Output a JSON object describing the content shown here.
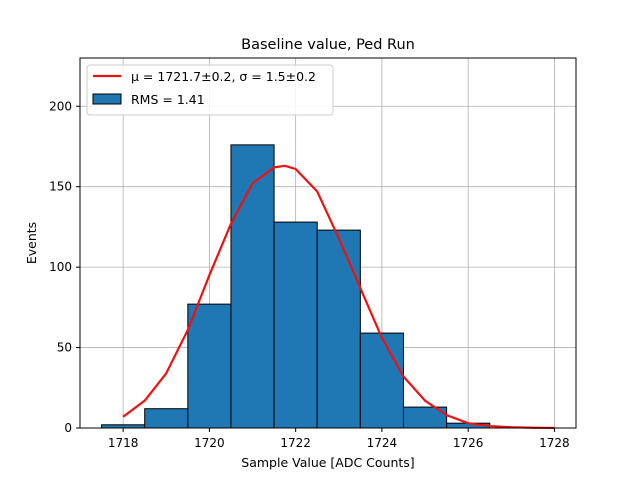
{
  "chart_data": {
    "type": "bar",
    "title": "Baseline value, Ped Run",
    "xlabel": "Sample Value [ADC Counts]",
    "ylabel": "Events",
    "xlim": [
      1717.0,
      1728.5
    ],
    "ylim": [
      0,
      230
    ],
    "xticks": [
      1718,
      1720,
      1722,
      1724,
      1726,
      1728
    ],
    "yticks": [
      0,
      50,
      100,
      150,
      200
    ],
    "grid": true,
    "legend_position": "top-left",
    "histogram": {
      "name": "RMS = 1.41",
      "color": "#1f77b4",
      "bin_edges": [
        1717.5,
        1718.5,
        1719.5,
        1720.5,
        1721.5,
        1722.5,
        1723.5,
        1724.5,
        1725.5,
        1726.5,
        1727.5
      ],
      "counts": [
        2,
        12,
        77,
        176,
        128,
        123,
        59,
        13,
        3,
        0
      ]
    },
    "fit": {
      "name": "μ = 1721.7±0.2, σ = 1.5±0.2",
      "color": "#ee1111",
      "x": [
        1718.0,
        1718.5,
        1719.0,
        1719.5,
        1720.0,
        1720.5,
        1721.0,
        1721.5,
        1721.75,
        1722.0,
        1722.5,
        1723.0,
        1723.5,
        1724.0,
        1724.5,
        1725.0,
        1725.5,
        1726.0,
        1726.5,
        1727.0,
        1727.5,
        1728.0
      ],
      "y": [
        7,
        17,
        34,
        61,
        95,
        127,
        152,
        162,
        163,
        161,
        147,
        118,
        87,
        56,
        32,
        17,
        8,
        3,
        1.2,
        0.5,
        0.15,
        0.04
      ]
    }
  }
}
